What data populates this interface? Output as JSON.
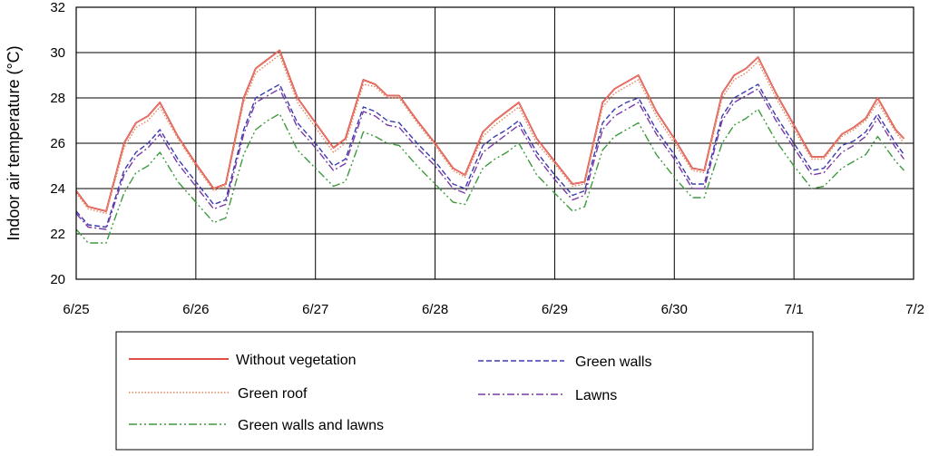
{
  "chart_data": {
    "type": "line",
    "title": "",
    "xlabel": "",
    "ylabel": "Indoor air temperature (°C)",
    "ylim": [
      20,
      32
    ],
    "xlim": [
      0,
      7
    ],
    "grid": true,
    "y_ticks": [
      20,
      22,
      24,
      26,
      28,
      30,
      32
    ],
    "x_tick_labels": [
      "6/25",
      "6/26",
      "6/27",
      "6/28",
      "6/29",
      "6/30",
      "7/1",
      "7/2"
    ],
    "legend_position": "bottom",
    "series": [
      {
        "name": "Without vegetation",
        "color": "#d9362b",
        "style": "solid",
        "x": [
          0,
          0.1,
          0.25,
          0.4,
          0.5,
          0.6,
          0.7,
          0.85,
          1.0,
          1.15,
          1.25,
          1.4,
          1.5,
          1.6,
          1.7,
          1.85,
          2.0,
          2.15,
          2.25,
          2.4,
          2.5,
          2.6,
          2.7,
          2.85,
          3.0,
          3.15,
          3.25,
          3.4,
          3.5,
          3.6,
          3.7,
          3.85,
          4.0,
          4.15,
          4.25,
          4.4,
          4.5,
          4.6,
          4.7,
          4.85,
          5.0,
          5.15,
          5.25,
          5.4,
          5.5,
          5.6,
          5.7,
          5.85,
          6.0,
          6.15,
          6.25,
          6.4,
          6.5,
          6.6,
          6.7,
          6.85,
          6.92
        ],
        "values": [
          23.9,
          23.2,
          23.0,
          26.0,
          26.9,
          27.2,
          27.8,
          26.3,
          25.1,
          24.0,
          24.2,
          28.0,
          29.3,
          29.7,
          30.1,
          28.0,
          26.9,
          25.8,
          26.2,
          28.8,
          28.6,
          28.1,
          28.1,
          27.0,
          26.0,
          24.9,
          24.6,
          26.5,
          27.0,
          27.4,
          27.8,
          26.2,
          25.2,
          24.2,
          24.3,
          27.8,
          28.4,
          28.7,
          29.0,
          27.4,
          26.2,
          24.9,
          24.8,
          28.2,
          29.0,
          29.3,
          29.8,
          28.2,
          26.8,
          25.4,
          25.4,
          26.4,
          26.7,
          27.1,
          28.0,
          26.6,
          26.2
        ]
      },
      {
        "name": "Green roof",
        "color": "#e4845b",
        "style": "dotted",
        "x": [
          0,
          0.1,
          0.25,
          0.4,
          0.5,
          0.6,
          0.7,
          0.85,
          1.0,
          1.15,
          1.25,
          1.4,
          1.5,
          1.6,
          1.7,
          1.85,
          2.0,
          2.15,
          2.25,
          2.4,
          2.5,
          2.6,
          2.7,
          2.85,
          3.0,
          3.15,
          3.25,
          3.4,
          3.5,
          3.6,
          3.7,
          3.85,
          4.0,
          4.15,
          4.25,
          4.4,
          4.5,
          4.6,
          4.7,
          4.85,
          5.0,
          5.15,
          5.25,
          5.4,
          5.5,
          5.6,
          5.7,
          5.85,
          6.0,
          6.15,
          6.25,
          6.4,
          6.5,
          6.6,
          6.7,
          6.85,
          6.92
        ],
        "values": [
          23.8,
          23.1,
          22.9,
          25.8,
          26.7,
          27.0,
          27.6,
          26.2,
          25.0,
          23.9,
          24.1,
          27.8,
          29.1,
          29.5,
          29.9,
          27.8,
          26.7,
          25.6,
          26.0,
          28.6,
          28.5,
          28.0,
          28.0,
          26.9,
          25.9,
          24.8,
          24.5,
          26.3,
          26.8,
          27.2,
          27.6,
          26.0,
          25.1,
          24.1,
          24.2,
          27.6,
          28.2,
          28.5,
          28.8,
          27.2,
          26.0,
          24.8,
          24.7,
          28.0,
          28.8,
          29.1,
          29.6,
          28.0,
          26.6,
          25.3,
          25.3,
          26.3,
          26.6,
          27.0,
          27.8,
          26.5,
          26.0
        ]
      },
      {
        "name": "Green walls",
        "color": "#3c3cae",
        "style": "dashed",
        "x": [
          0,
          0.1,
          0.25,
          0.4,
          0.5,
          0.6,
          0.7,
          0.85,
          1.0,
          1.15,
          1.25,
          1.4,
          1.5,
          1.6,
          1.7,
          1.85,
          2.0,
          2.15,
          2.25,
          2.4,
          2.5,
          2.6,
          2.7,
          2.85,
          3.0,
          3.15,
          3.25,
          3.4,
          3.5,
          3.6,
          3.7,
          3.85,
          4.0,
          4.15,
          4.25,
          4.4,
          4.5,
          4.6,
          4.7,
          4.85,
          5.0,
          5.15,
          5.25,
          5.4,
          5.5,
          5.6,
          5.7,
          5.85,
          6.0,
          6.15,
          6.25,
          6.4,
          6.5,
          6.6,
          6.7,
          6.85,
          6.92
        ],
        "values": [
          23.0,
          22.4,
          22.3,
          24.8,
          25.6,
          26.0,
          26.6,
          25.3,
          24.3,
          23.3,
          23.5,
          26.6,
          28.0,
          28.3,
          28.6,
          26.9,
          26.0,
          25.0,
          25.3,
          27.6,
          27.4,
          27.0,
          26.9,
          26.0,
          25.2,
          24.2,
          24.0,
          25.9,
          26.3,
          26.6,
          27.0,
          25.6,
          24.6,
          23.7,
          23.9,
          26.9,
          27.5,
          27.8,
          28.0,
          26.6,
          25.5,
          24.2,
          24.2,
          27.2,
          28.0,
          28.3,
          28.6,
          27.2,
          26.0,
          24.8,
          24.9,
          25.9,
          26.1,
          26.5,
          27.3,
          26.0,
          25.5
        ]
      },
      {
        "name": "Lawns",
        "color": "#7a3aa6",
        "style": "dashdot",
        "x": [
          0,
          0.1,
          0.25,
          0.4,
          0.5,
          0.6,
          0.7,
          0.85,
          1.0,
          1.15,
          1.25,
          1.4,
          1.5,
          1.6,
          1.7,
          1.85,
          2.0,
          2.15,
          2.25,
          2.4,
          2.5,
          2.6,
          2.7,
          2.85,
          3.0,
          3.15,
          3.25,
          3.4,
          3.5,
          3.6,
          3.7,
          3.85,
          4.0,
          4.15,
          4.25,
          4.4,
          4.5,
          4.6,
          4.7,
          4.85,
          5.0,
          5.15,
          5.25,
          5.4,
          5.5,
          5.6,
          5.7,
          5.85,
          6.0,
          6.15,
          6.25,
          6.4,
          6.5,
          6.6,
          6.7,
          6.85,
          6.92
        ],
        "values": [
          22.9,
          22.3,
          22.2,
          24.6,
          25.4,
          25.8,
          26.4,
          25.1,
          24.1,
          23.1,
          23.3,
          26.4,
          27.8,
          28.1,
          28.4,
          26.7,
          25.8,
          24.8,
          25.1,
          27.4,
          27.2,
          26.8,
          26.7,
          25.8,
          25.0,
          24.0,
          23.8,
          25.6,
          26.0,
          26.4,
          26.8,
          25.4,
          24.4,
          23.5,
          23.7,
          26.6,
          27.2,
          27.5,
          27.8,
          26.4,
          25.3,
          24.0,
          24.0,
          27.0,
          27.8,
          28.1,
          28.4,
          27.0,
          25.8,
          24.6,
          24.7,
          25.6,
          25.9,
          26.3,
          27.1,
          25.8,
          25.3
        ]
      },
      {
        "name": "Green walls and lawns",
        "color": "#3d9a3d",
        "style": "dashdotdot",
        "x": [
          0,
          0.1,
          0.25,
          0.4,
          0.5,
          0.6,
          0.7,
          0.85,
          1.0,
          1.15,
          1.25,
          1.4,
          1.5,
          1.6,
          1.7,
          1.85,
          2.0,
          2.15,
          2.25,
          2.4,
          2.5,
          2.6,
          2.7,
          2.85,
          3.0,
          3.15,
          3.25,
          3.4,
          3.5,
          3.6,
          3.7,
          3.85,
          4.0,
          4.15,
          4.25,
          4.4,
          4.5,
          4.6,
          4.7,
          4.85,
          5.0,
          5.15,
          5.25,
          5.4,
          5.5,
          5.6,
          5.7,
          5.85,
          6.0,
          6.15,
          6.25,
          6.4,
          6.5,
          6.6,
          6.7,
          6.85,
          6.92
        ],
        "values": [
          22.2,
          21.6,
          21.6,
          23.8,
          24.7,
          25.0,
          25.6,
          24.3,
          23.4,
          22.5,
          22.7,
          25.5,
          26.6,
          27.0,
          27.3,
          25.7,
          24.9,
          24.1,
          24.3,
          26.5,
          26.3,
          26.0,
          25.9,
          25.0,
          24.2,
          23.4,
          23.3,
          24.9,
          25.3,
          25.6,
          26.0,
          24.6,
          23.8,
          23.0,
          23.2,
          25.7,
          26.3,
          26.6,
          26.9,
          25.5,
          24.5,
          23.6,
          23.6,
          26.0,
          26.8,
          27.1,
          27.5,
          26.1,
          25.0,
          24.0,
          24.1,
          24.9,
          25.2,
          25.5,
          26.3,
          25.2,
          24.8
        ]
      }
    ]
  }
}
